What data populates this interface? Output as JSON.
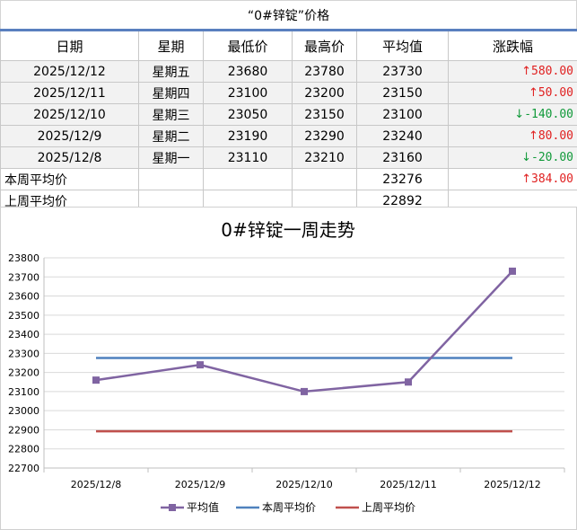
{
  "page_title": "“0#锌锭”价格",
  "table": {
    "headers": [
      "日期",
      "星期",
      "最低价",
      "最高价",
      "平均值",
      "涨跌幅"
    ],
    "rows": [
      {
        "date": "2025/12/12",
        "weekday": "星期五",
        "low": "23680",
        "high": "23780",
        "avg": "23730",
        "change": "580.00",
        "dir": "up"
      },
      {
        "date": "2025/12/11",
        "weekday": "星期四",
        "low": "23100",
        "high": "23200",
        "avg": "23150",
        "change": "50.00",
        "dir": "up"
      },
      {
        "date": "2025/12/10",
        "weekday": "星期三",
        "low": "23050",
        "high": "23150",
        "avg": "23100",
        "change": "-140.00",
        "dir": "down"
      },
      {
        "date": "2025/12/9",
        "weekday": "星期二",
        "low": "23190",
        "high": "23290",
        "avg": "23240",
        "change": "80.00",
        "dir": "up"
      },
      {
        "date": "2025/12/8",
        "weekday": "星期一",
        "low": "23110",
        "high": "23210",
        "avg": "23160",
        "change": "-20.00",
        "dir": "down"
      }
    ],
    "this_week": {
      "label": "本周平均价",
      "avg": "23276",
      "change": "384.00",
      "dir": "up"
    },
    "last_week": {
      "label": "上周平均价",
      "avg": "22892"
    }
  },
  "colors": {
    "up": "#e02020",
    "down": "#119a3a",
    "header_rule": "#5a7fbf"
  },
  "chart_data": {
    "type": "line",
    "title": "0#锌锭一周走势",
    "categories": [
      "2025/12/8",
      "2025/12/9",
      "2025/12/10",
      "2025/12/11",
      "2025/12/12"
    ],
    "series": [
      {
        "name": "平均值",
        "values": [
          23160,
          23240,
          23100,
          23150,
          23730
        ],
        "color": "#8064a2",
        "marker": "square"
      },
      {
        "name": "本周平均价",
        "values": [
          23276,
          23276,
          23276,
          23276,
          23276
        ],
        "color": "#4f81bd"
      },
      {
        "name": "上周平均价",
        "values": [
          22892,
          22892,
          22892,
          22892,
          22892
        ],
        "color": "#c0504d"
      }
    ],
    "ylim": [
      22700,
      23800
    ],
    "ytick_step": 100,
    "grid": true,
    "legend": "bottom"
  }
}
